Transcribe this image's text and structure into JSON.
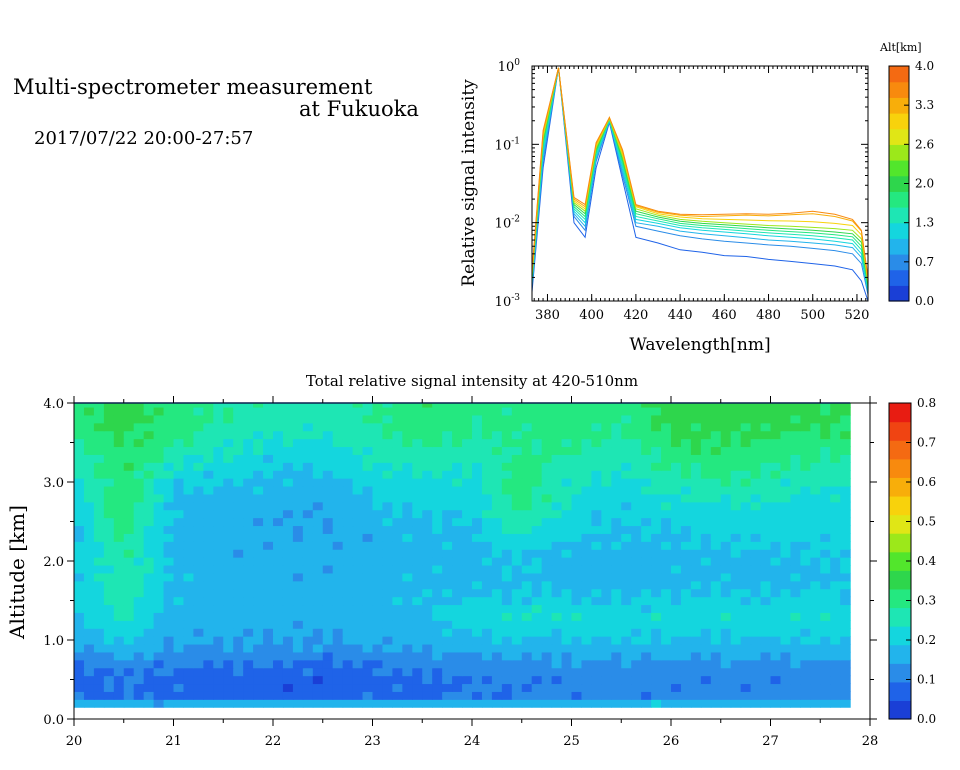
{
  "header": {
    "title_line1": "Multi-spectrometer measurement",
    "title_line2": "at Fukuoka",
    "datetime": "2017/07/22 20:00-27:57"
  },
  "colors": {
    "scale": [
      "#1a3fd6",
      "#1f63e8",
      "#2a8ce8",
      "#22b4ec",
      "#14d6de",
      "#1ee6b4",
      "#24e880",
      "#2ed64c",
      "#52e62c",
      "#9ce81a",
      "#e0e616",
      "#f8d20c",
      "#f8ae0a",
      "#f88a0e",
      "#f46a12",
      "#f04412",
      "#e81c12"
    ],
    "spectra_alt": [
      "#1f63e8",
      "#2a8ce8",
      "#22b4ec",
      "#14d6de",
      "#1ee6b4",
      "#24e880",
      "#2ed64c",
      "#9ce81a",
      "#f8d20c",
      "#f8ae0a",
      "#f88a0e"
    ],
    "axis": "#000000"
  },
  "spectrum_panel": {
    "xlabel": "Wavelength[nm]",
    "ylabel": "Relative signal intensity",
    "xticks": [
      "380",
      "400",
      "420",
      "440",
      "460",
      "480",
      "500",
      "520"
    ],
    "ytick_mantissa": [
      "10",
      "10",
      "10",
      "10"
    ],
    "ytick_exponents": [
      "-3",
      "-2",
      "-1",
      "0"
    ],
    "colorbar_title": "Alt[km]",
    "colorbar_ticks": [
      "4.0",
      "3.3",
      "2.6",
      "2.0",
      "1.3",
      "0.7",
      "0.0"
    ]
  },
  "heatmap_panel": {
    "title": "Total relative signal intensity at 420-510nm",
    "ylabel": "Altitude [km]",
    "xticks": [
      "20",
      "21",
      "22",
      "23",
      "24",
      "25",
      "26",
      "27",
      "28"
    ],
    "yticks": [
      "0.0",
      "1.0",
      "2.0",
      "3.0",
      "4.0"
    ],
    "colorbar_ticks": [
      "0.8",
      "0.7",
      "0.6",
      "0.5",
      "0.4",
      "0.3",
      "0.2",
      "0.1",
      "0.0"
    ]
  },
  "chart_data": [
    {
      "type": "line",
      "title": "",
      "xlabel": "Wavelength[nm]",
      "ylabel": "Relative signal intensity",
      "yscale": "log",
      "xlim": [
        373,
        525
      ],
      "ylim": [
        0.001,
        1
      ],
      "x": [
        373,
        378,
        385,
        392,
        397,
        402,
        408,
        414,
        420,
        430,
        440,
        450,
        460,
        470,
        480,
        490,
        500,
        510,
        518,
        522,
        525
      ],
      "series": [
        {
          "alt_km": 0.0,
          "values": [
            0.0013,
            0.05,
            0.95,
            0.01,
            0.0065,
            0.05,
            0.19,
            0.035,
            0.0065,
            0.0055,
            0.0045,
            0.0042,
            0.0038,
            0.0037,
            0.0034,
            0.0032,
            0.003,
            0.0028,
            0.0025,
            0.0018,
            0.001
          ]
        },
        {
          "alt_km": 0.35,
          "values": [
            0.0015,
            0.06,
            0.95,
            0.012,
            0.008,
            0.06,
            0.2,
            0.04,
            0.009,
            0.0078,
            0.0068,
            0.0062,
            0.0058,
            0.0055,
            0.0052,
            0.005,
            0.0047,
            0.0044,
            0.004,
            0.003,
            0.0012
          ]
        },
        {
          "alt_km": 0.7,
          "values": [
            0.0016,
            0.07,
            0.95,
            0.013,
            0.009,
            0.065,
            0.2,
            0.045,
            0.01,
            0.009,
            0.0078,
            0.0072,
            0.0068,
            0.0064,
            0.006,
            0.0058,
            0.0055,
            0.0052,
            0.0048,
            0.0036,
            0.0013
          ]
        },
        {
          "alt_km": 1.0,
          "values": [
            0.0017,
            0.08,
            0.95,
            0.014,
            0.01,
            0.07,
            0.2,
            0.05,
            0.011,
            0.0098,
            0.0086,
            0.008,
            0.0076,
            0.0072,
            0.0068,
            0.0065,
            0.0062,
            0.0058,
            0.0054,
            0.004,
            0.0013
          ]
        },
        {
          "alt_km": 1.3,
          "values": [
            0.0018,
            0.09,
            0.95,
            0.015,
            0.011,
            0.075,
            0.21,
            0.055,
            0.012,
            0.0105,
            0.0092,
            0.0086,
            0.0082,
            0.0078,
            0.0074,
            0.0071,
            0.0068,
            0.0064,
            0.006,
            0.0045,
            0.0014
          ]
        },
        {
          "alt_km": 1.65,
          "values": [
            0.0019,
            0.1,
            0.95,
            0.016,
            0.012,
            0.08,
            0.21,
            0.06,
            0.013,
            0.0112,
            0.0098,
            0.0092,
            0.0088,
            0.0084,
            0.008,
            0.0077,
            0.0074,
            0.007,
            0.0066,
            0.005,
            0.0015
          ]
        },
        {
          "alt_km": 2.0,
          "values": [
            0.002,
            0.11,
            0.95,
            0.017,
            0.013,
            0.085,
            0.21,
            0.065,
            0.014,
            0.0118,
            0.0104,
            0.0098,
            0.0094,
            0.009,
            0.0086,
            0.0083,
            0.008,
            0.0076,
            0.0072,
            0.0056,
            0.0016
          ]
        },
        {
          "alt_km": 2.6,
          "values": [
            0.0021,
            0.12,
            0.95,
            0.018,
            0.014,
            0.09,
            0.21,
            0.07,
            0.015,
            0.0124,
            0.011,
            0.0104,
            0.01,
            0.0096,
            0.0092,
            0.009,
            0.0087,
            0.0084,
            0.008,
            0.0062,
            0.0017
          ]
        },
        {
          "alt_km": 3.0,
          "values": [
            0.0022,
            0.13,
            0.95,
            0.019,
            0.015,
            0.095,
            0.22,
            0.075,
            0.016,
            0.013,
            0.0118,
            0.0112,
            0.011,
            0.0108,
            0.0106,
            0.0105,
            0.0103,
            0.0098,
            0.0092,
            0.007,
            0.0018
          ]
        },
        {
          "alt_km": 3.5,
          "values": [
            0.0023,
            0.14,
            0.95,
            0.02,
            0.016,
            0.1,
            0.22,
            0.08,
            0.0165,
            0.0136,
            0.0124,
            0.012,
            0.0122,
            0.0125,
            0.0122,
            0.0126,
            0.013,
            0.012,
            0.0105,
            0.0078,
            0.0019
          ]
        },
        {
          "alt_km": 3.8,
          "values": [
            0.0024,
            0.15,
            0.95,
            0.021,
            0.017,
            0.105,
            0.22,
            0.085,
            0.017,
            0.014,
            0.0128,
            0.0126,
            0.0128,
            0.013,
            0.0128,
            0.0132,
            0.014,
            0.0128,
            0.011,
            0.008,
            0.002
          ]
        }
      ]
    },
    {
      "type": "heatmap",
      "title": "Total relative signal intensity at 420-510nm",
      "xlabel": "",
      "ylabel": "Altitude [km]",
      "xlim": [
        20,
        28
      ],
      "ylim": [
        0,
        4
      ],
      "zlim": [
        0,
        0.8
      ],
      "x_range_data": [
        20,
        27.8
      ],
      "y_range_data": [
        0.15,
        4.0
      ],
      "profile_altitudes": [
        0.15,
        0.3,
        0.5,
        0.7,
        0.9,
        1.1,
        1.3,
        1.5,
        1.8,
        2.1,
        2.4,
        2.7,
        3.0,
        3.3,
        3.6,
        3.9
      ],
      "profile_times": [
        20.0,
        20.5,
        21.0,
        21.5,
        22.0,
        22.5,
        23.0,
        23.5,
        24.0,
        24.5,
        25.0,
        25.5,
        26.0,
        26.5,
        27.0,
        27.5
      ],
      "values": [
        [
          0.2,
          0.19,
          0.2,
          0.2,
          0.2,
          0.2,
          0.2,
          0.2,
          0.2,
          0.2,
          0.2,
          0.2,
          0.2,
          0.2,
          0.2,
          0.2
        ],
        [
          0.08,
          0.1,
          0.08,
          0.08,
          0.07,
          0.07,
          0.08,
          0.08,
          0.1,
          0.1,
          0.11,
          0.11,
          0.11,
          0.11,
          0.11,
          0.11
        ],
        [
          0.07,
          0.09,
          0.07,
          0.07,
          0.06,
          0.06,
          0.07,
          0.08,
          0.1,
          0.1,
          0.11,
          0.11,
          0.11,
          0.11,
          0.11,
          0.11
        ],
        [
          0.09,
          0.12,
          0.1,
          0.1,
          0.09,
          0.09,
          0.1,
          0.11,
          0.12,
          0.12,
          0.13,
          0.13,
          0.13,
          0.13,
          0.13,
          0.13
        ],
        [
          0.13,
          0.17,
          0.13,
          0.14,
          0.13,
          0.13,
          0.14,
          0.14,
          0.16,
          0.16,
          0.17,
          0.17,
          0.17,
          0.17,
          0.17,
          0.17
        ],
        [
          0.16,
          0.22,
          0.15,
          0.15,
          0.15,
          0.15,
          0.16,
          0.16,
          0.19,
          0.2,
          0.2,
          0.2,
          0.2,
          0.2,
          0.2,
          0.2
        ],
        [
          0.18,
          0.25,
          0.17,
          0.17,
          0.16,
          0.16,
          0.17,
          0.18,
          0.22,
          0.24,
          0.23,
          0.22,
          0.22,
          0.22,
          0.22,
          0.23
        ],
        [
          0.19,
          0.26,
          0.17,
          0.17,
          0.16,
          0.16,
          0.17,
          0.18,
          0.19,
          0.2,
          0.19,
          0.19,
          0.2,
          0.2,
          0.19,
          0.2
        ],
        [
          0.19,
          0.27,
          0.17,
          0.17,
          0.16,
          0.16,
          0.17,
          0.18,
          0.17,
          0.18,
          0.16,
          0.17,
          0.17,
          0.18,
          0.17,
          0.18
        ],
        [
          0.18,
          0.28,
          0.17,
          0.16,
          0.15,
          0.16,
          0.16,
          0.17,
          0.17,
          0.2,
          0.17,
          0.17,
          0.17,
          0.18,
          0.18,
          0.19
        ],
        [
          0.18,
          0.3,
          0.17,
          0.16,
          0.15,
          0.15,
          0.16,
          0.18,
          0.18,
          0.25,
          0.2,
          0.18,
          0.19,
          0.2,
          0.21,
          0.21
        ],
        [
          0.19,
          0.32,
          0.18,
          0.17,
          0.16,
          0.15,
          0.18,
          0.2,
          0.2,
          0.3,
          0.22,
          0.2,
          0.22,
          0.23,
          0.23,
          0.22
        ],
        [
          0.21,
          0.33,
          0.2,
          0.19,
          0.18,
          0.17,
          0.21,
          0.22,
          0.22,
          0.31,
          0.24,
          0.22,
          0.26,
          0.28,
          0.26,
          0.24
        ],
        [
          0.25,
          0.33,
          0.25,
          0.23,
          0.2,
          0.2,
          0.24,
          0.26,
          0.25,
          0.3,
          0.27,
          0.25,
          0.3,
          0.32,
          0.3,
          0.28
        ],
        [
          0.29,
          0.34,
          0.3,
          0.26,
          0.24,
          0.24,
          0.27,
          0.3,
          0.28,
          0.29,
          0.3,
          0.28,
          0.33,
          0.34,
          0.33,
          0.32
        ],
        [
          0.3,
          0.36,
          0.31,
          0.28,
          0.26,
          0.26,
          0.28,
          0.32,
          0.3,
          0.3,
          0.31,
          0.3,
          0.35,
          0.36,
          0.35,
          0.34
        ]
      ]
    }
  ]
}
